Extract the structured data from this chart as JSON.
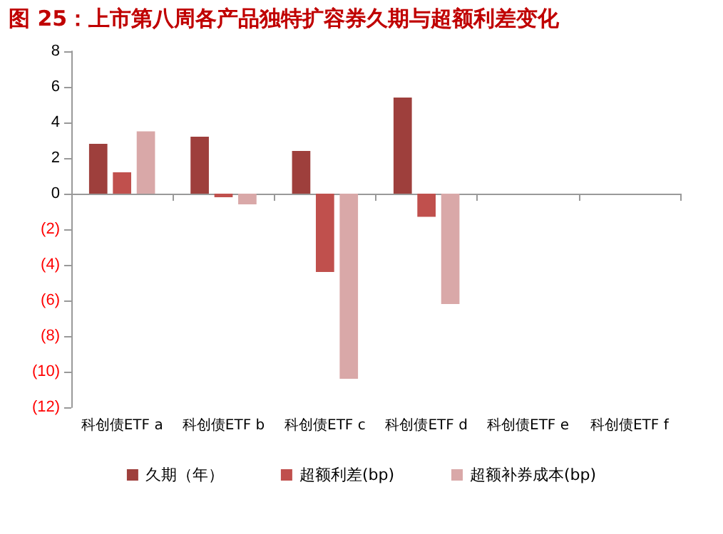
{
  "chart_data": {
    "type": "bar",
    "title": "图 25：上市第八周各产品独特扩容券久期与超额利差变化",
    "categories": [
      "科创债ETF a",
      "科创债ETF b",
      "科创债ETF c",
      "科创债ETF d",
      "科创债ETF e",
      "科创债ETF f"
    ],
    "series": [
      {
        "name": "久期（年）",
        "color": "#9e3f3c",
        "values": [
          2.8,
          3.2,
          2.4,
          5.4,
          null,
          null
        ]
      },
      {
        "name": "超额利差(bp)",
        "color": "#c0504d",
        "values": [
          1.2,
          -0.2,
          -4.4,
          -1.3,
          null,
          null
        ]
      },
      {
        "name": "超额补券成本(bp)",
        "color": "#d9a8a8",
        "values": [
          3.5,
          -0.6,
          -10.4,
          -6.2,
          null,
          null
        ]
      }
    ],
    "ylim": [
      -12,
      8
    ],
    "yticks": [
      {
        "value": -12,
        "label": "(12)"
      },
      {
        "value": -10,
        "label": "(10)"
      },
      {
        "value": -8,
        "label": "(8)"
      },
      {
        "value": -6,
        "label": "(6)"
      },
      {
        "value": -4,
        "label": "(4)"
      },
      {
        "value": -2,
        "label": "(2)"
      },
      0,
      2,
      4,
      6,
      8
    ],
    "legend": "bottom"
  }
}
